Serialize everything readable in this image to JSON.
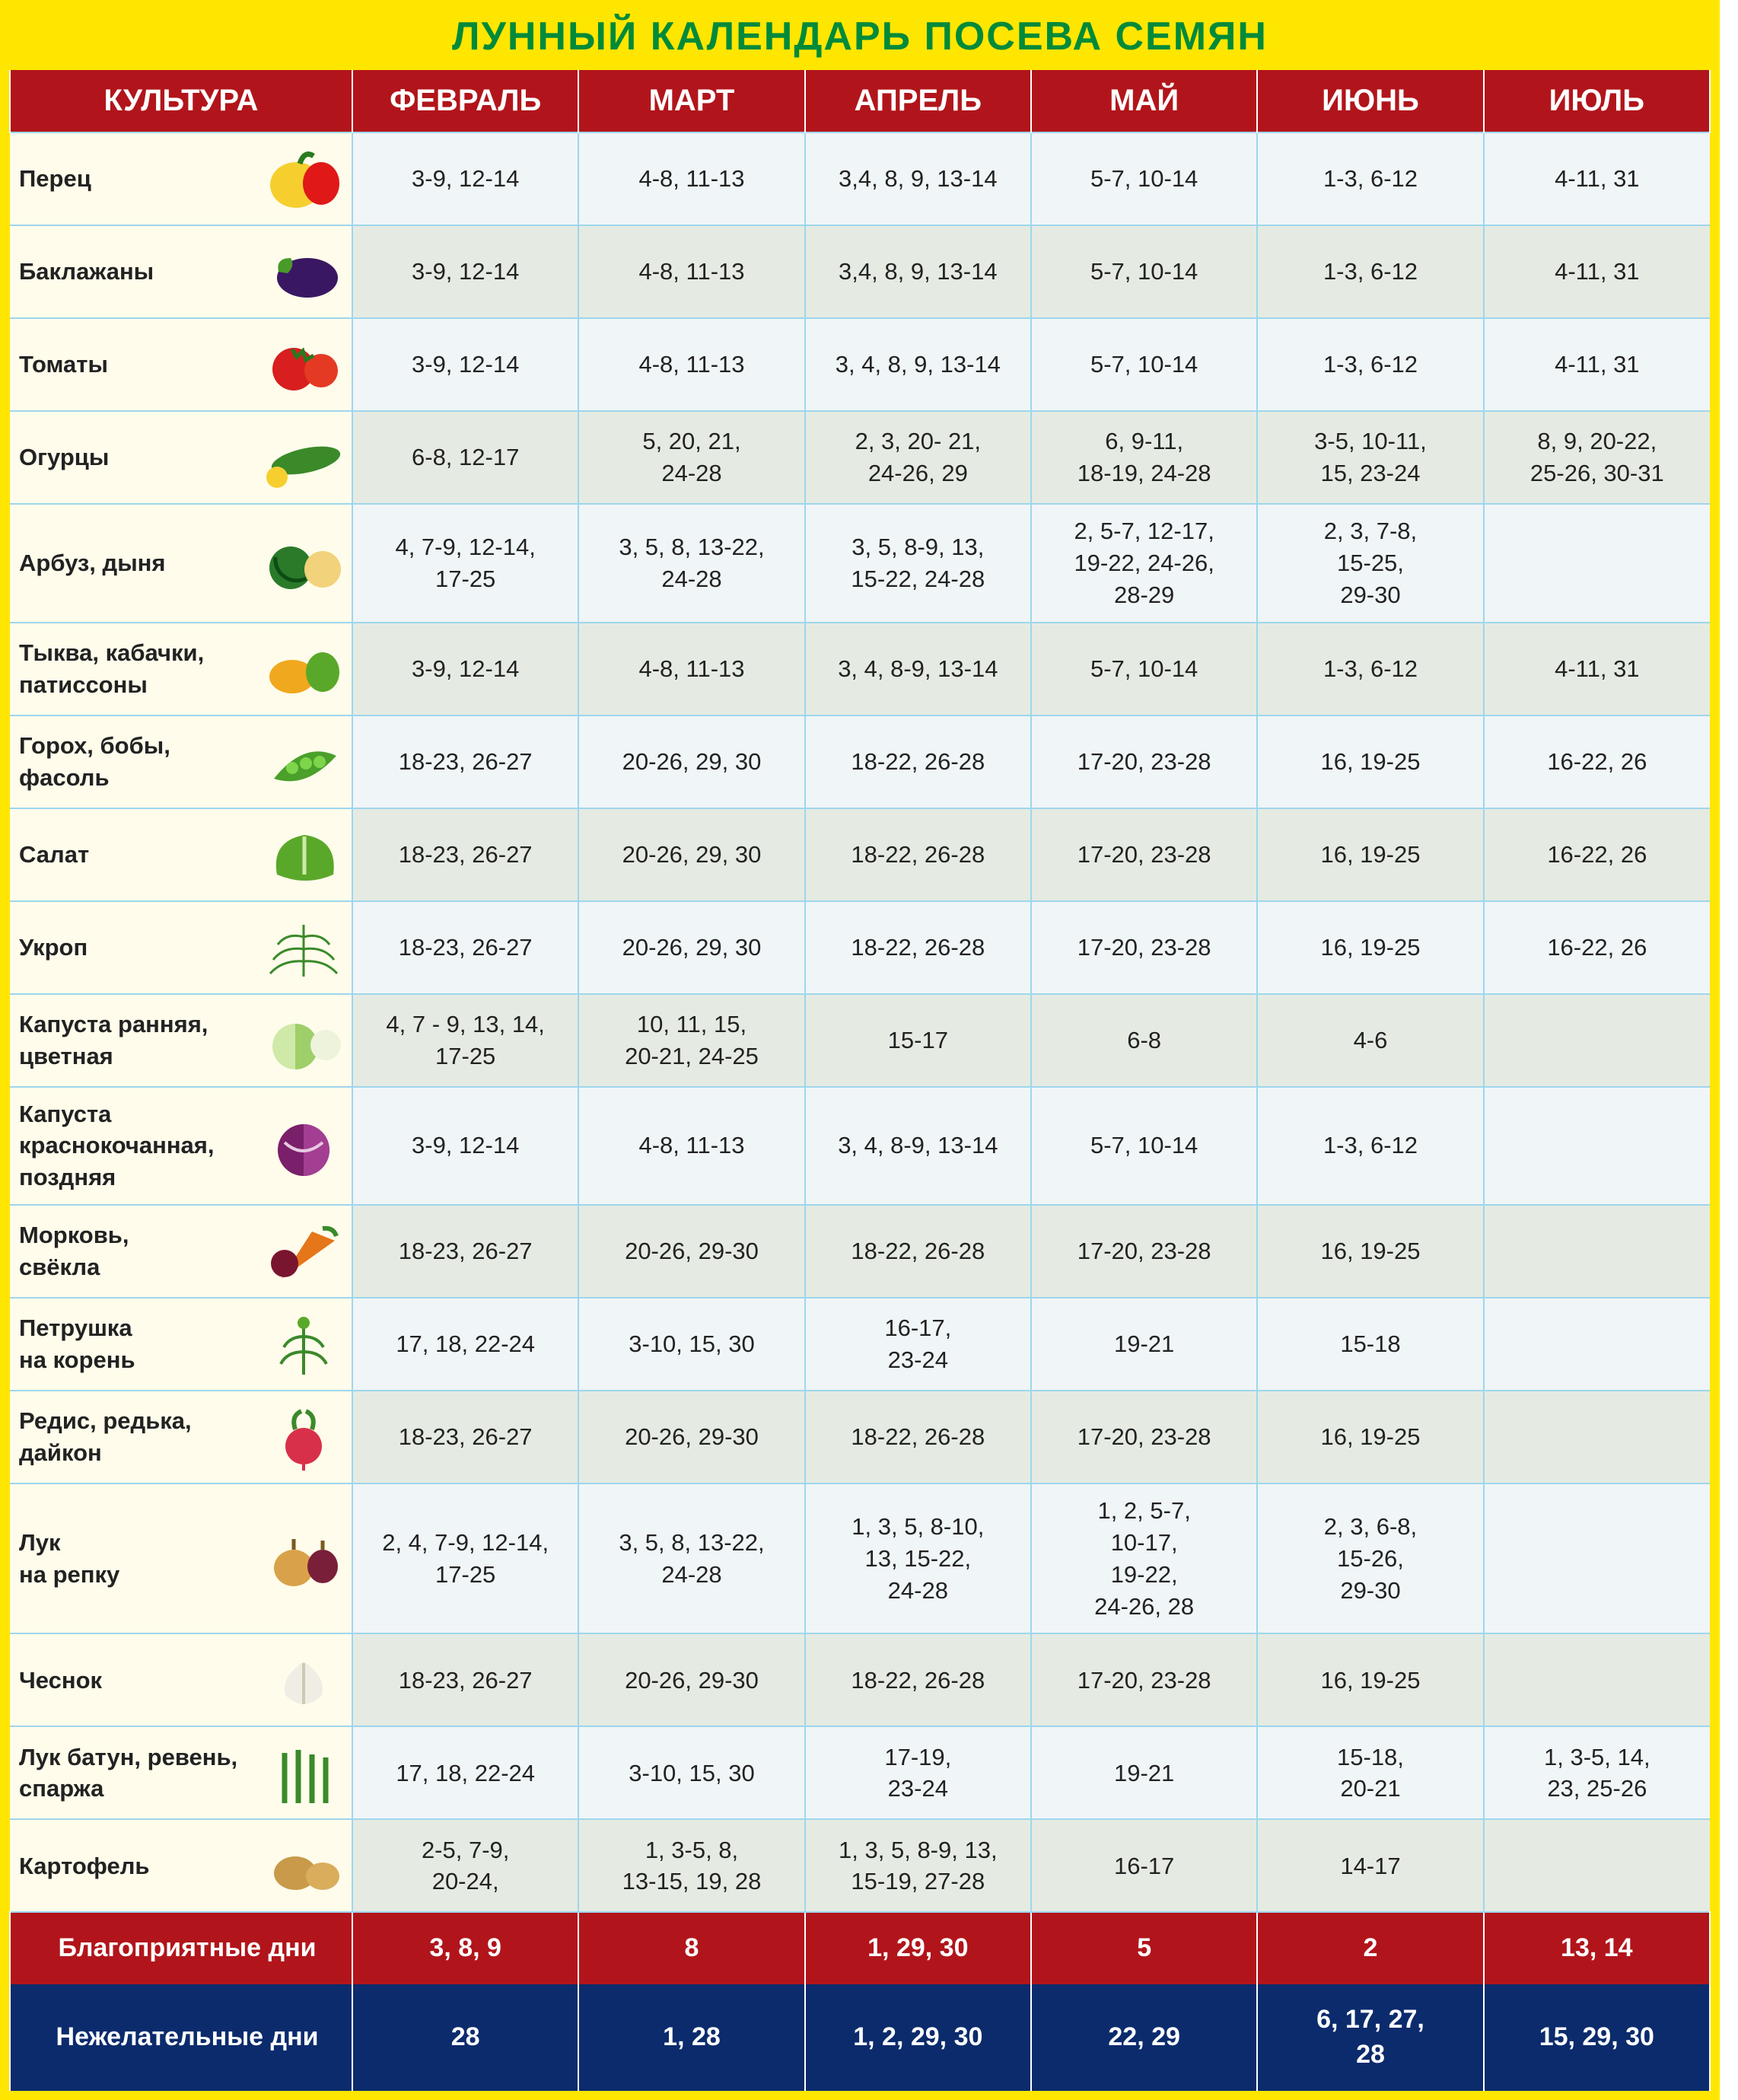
{
  "title": "ЛУННЫЙ КАЛЕНДАРЬ ПОСЕВА СЕМЯН",
  "columns": [
    "КУЛЬТУРА",
    "ФЕВРАЛЬ",
    "МАРТ",
    "АПРЕЛЬ",
    "МАЙ",
    "ИЮНЬ",
    "ИЮЛЬ"
  ],
  "colors": {
    "frame": "#ffe600",
    "title": "#008a3a",
    "header_bg": "#b1151b",
    "header_text": "#ffffff",
    "row_border": "#9ed6ed",
    "culture_bg": "#fffceb",
    "rowA_bg": "#f0f5f7",
    "rowB_bg": "#e5ebe2",
    "foot_good": "#b1151b",
    "foot_bad": "#0b2b6c"
  },
  "crops": [
    {
      "name": "Перец",
      "pattern": "A",
      "icon": "pepper",
      "vals": [
        "3-9, 12-14",
        "4-8, 11-13",
        "3,4, 8, 9, 13-14",
        "5-7, 10-14",
        "1-3, 6-12",
        "4-11, 31"
      ]
    },
    {
      "name": "Баклажаны",
      "pattern": "B",
      "icon": "eggplant",
      "vals": [
        "3-9, 12-14",
        "4-8, 11-13",
        "3,4, 8, 9, 13-14",
        "5-7, 10-14",
        "1-3, 6-12",
        "4-11, 31"
      ]
    },
    {
      "name": "Томаты",
      "pattern": "A",
      "icon": "tomato",
      "vals": [
        "3-9, 12-14",
        "4-8, 11-13",
        "3, 4, 8, 9, 13-14",
        "5-7, 10-14",
        "1-3, 6-12",
        "4-11, 31"
      ]
    },
    {
      "name": "Огурцы",
      "pattern": "B",
      "icon": "cucumber",
      "vals": [
        "6-8, 12-17",
        "5, 20, 21,\n24-28",
        "2, 3, 20- 21,\n24-26, 29",
        "6, 9-11,\n18-19, 24-28",
        "3-5, 10-11,\n15, 23-24",
        "8, 9, 20-22,\n25-26, 30-31"
      ]
    },
    {
      "name": "Арбуз, дыня",
      "pattern": "A",
      "icon": "melon",
      "vals": [
        "4, 7-9, 12-14,\n17-25",
        "3, 5, 8, 13-22,\n24-28",
        "3, 5, 8-9, 13,\n15-22, 24-28",
        "2, 5-7, 12-17,\n19-22, 24-26,\n28-29",
        "2, 3, 7-8,\n15-25,\n29-30",
        ""
      ]
    },
    {
      "name": "Тыква, кабачки, патиссоны",
      "pattern": "B",
      "icon": "squash",
      "vals": [
        "3-9, 12-14",
        "4-8, 11-13",
        "3, 4, 8-9, 13-14",
        "5-7, 10-14",
        "1-3, 6-12",
        "4-11, 31"
      ]
    },
    {
      "name": "Горох, бобы,\nфасоль",
      "pattern": "A",
      "icon": "peas",
      "vals": [
        "18-23, 26-27",
        "20-26, 29, 30",
        "18-22, 26-28",
        "17-20, 23-28",
        "16, 19-25",
        "16-22, 26"
      ]
    },
    {
      "name": "Салат",
      "pattern": "B",
      "icon": "salad",
      "vals": [
        "18-23, 26-27",
        "20-26, 29, 30",
        "18-22, 26-28",
        "17-20, 23-28",
        "16, 19-25",
        "16-22, 26"
      ]
    },
    {
      "name": "Укроп",
      "pattern": "A",
      "icon": "dill",
      "vals": [
        "18-23, 26-27",
        "20-26, 29, 30",
        "18-22, 26-28",
        "17-20, 23-28",
        "16, 19-25",
        "16-22, 26"
      ]
    },
    {
      "name": "Капуста ранняя, цветная",
      "pattern": "B",
      "icon": "cabbage",
      "vals": [
        "4, 7 - 9, 13, 14,\n17-25",
        "10, 11, 15,\n20-21, 24-25",
        "15-17",
        "6-8",
        "4-6",
        ""
      ]
    },
    {
      "name": "Капуста краснокочанная, поздняя",
      "pattern": "A",
      "icon": "redcabbage",
      "vals": [
        "3-9, 12-14",
        "4-8, 11-13",
        "3, 4, 8-9, 13-14",
        "5-7, 10-14",
        "1-3, 6-12",
        ""
      ]
    },
    {
      "name": "Морковь,\nсвёкла",
      "pattern": "B",
      "icon": "carrot",
      "vals": [
        "18-23, 26-27",
        "20-26, 29-30",
        "18-22, 26-28",
        "17-20, 23-28",
        "16, 19-25",
        ""
      ]
    },
    {
      "name": "Петрушка\nна корень",
      "pattern": "A",
      "icon": "parsley",
      "vals": [
        "17, 18, 22-24",
        "3-10, 15, 30",
        "16-17,\n23-24",
        "19-21",
        "15-18",
        ""
      ]
    },
    {
      "name": "Редис, редька, дайкон",
      "pattern": "B",
      "icon": "radish",
      "vals": [
        "18-23, 26-27",
        "20-26, 29-30",
        "18-22, 26-28",
        "17-20, 23-28",
        "16, 19-25",
        ""
      ]
    },
    {
      "name": "Лук\nна репку",
      "pattern": "A",
      "icon": "onion",
      "vals": [
        "2, 4, 7-9, 12-14,\n17-25",
        "3, 5, 8, 13-22,\n24-28",
        "1, 3, 5, 8-10,\n13, 15-22,\n24-28",
        "1, 2, 5-7,\n10-17,\n19-22,\n24-26, 28",
        "2, 3, 6-8,\n15-26,\n29-30",
        ""
      ]
    },
    {
      "name": "Чеснок",
      "pattern": "B",
      "icon": "garlic",
      "vals": [
        "18-23, 26-27",
        "20-26, 29-30",
        "18-22, 26-28",
        "17-20, 23-28",
        "16, 19-25",
        ""
      ]
    },
    {
      "name": "Лук батун, ревень, спаржа",
      "pattern": "A",
      "icon": "leek",
      "vals": [
        "17, 18, 22-24",
        "3-10, 15, 30",
        "17-19,\n23-24",
        "19-21",
        "15-18,\n20-21",
        "1, 3-5, 14,\n23, 25-26"
      ]
    },
    {
      "name": "Картофель",
      "pattern": "B",
      "icon": "potato",
      "vals": [
        "2-5, 7-9,\n20-24,",
        "1, 3-5, 8,\n13-15, 19, 28",
        "1, 3, 5, 8-9, 13,\n15-19, 27-28",
        "16-17",
        "14-17",
        ""
      ]
    }
  ],
  "footer": {
    "good": {
      "label": "Благоприятные дни",
      "vals": [
        "3, 8, 9",
        "8",
        "1, 29, 30",
        "5",
        "2",
        "13, 14"
      ]
    },
    "bad": {
      "label": "Нежелательные дни",
      "vals": [
        "28",
        "1, 28",
        "1, 2, 29, 30",
        "22, 29",
        "6, 17, 27,\n28",
        "15, 29, 30"
      ]
    }
  }
}
